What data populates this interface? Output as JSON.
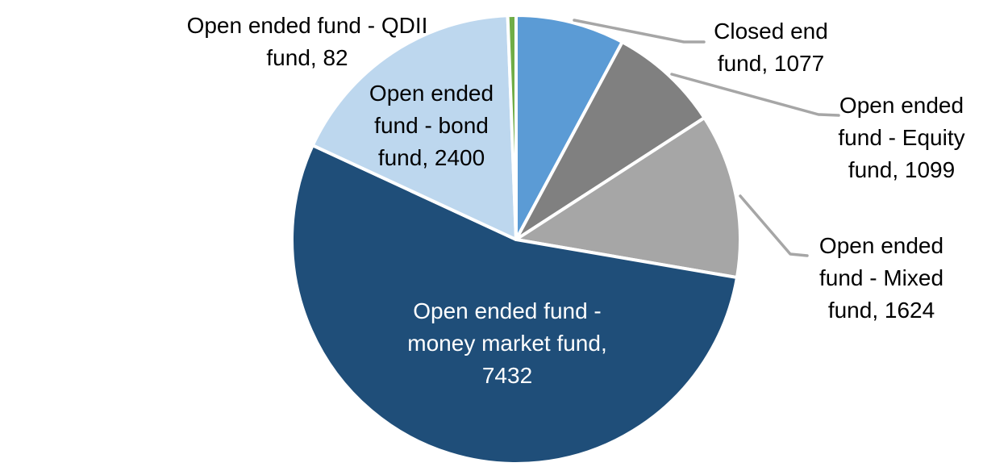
{
  "page": {
    "background_color": "#FFFFFF"
  },
  "chart_data": {
    "type": "pie",
    "title": "",
    "legend": "none",
    "total": 13714,
    "start_angle_deg": 0,
    "direction": "clockwise",
    "slice_border_color": "#FFFFFF",
    "leader_line_color": "#A6A6A6",
    "default_label_color": "#000000",
    "segments": [
      {
        "name": "Closed end fund",
        "value": 1077,
        "color": "#5B9BD5",
        "label_lines": [
          "Closed end",
          "fund, 1077"
        ],
        "label_color": "#000000",
        "label_placement": "outside-top-right",
        "leader_line": true
      },
      {
        "name": "Open ended fund - Equity fund",
        "value": 1099,
        "color": "#808080",
        "label_lines": [
          "Open ended",
          "fund - Equity",
          "fund, 1099"
        ],
        "label_color": "#000000",
        "label_placement": "outside-right",
        "leader_line": true
      },
      {
        "name": "Open ended fund - Mixed fund",
        "value": 1624,
        "color": "#A6A6A6",
        "label_lines": [
          "Open ended",
          "fund - Mixed",
          "fund, 1624"
        ],
        "label_color": "#000000",
        "label_placement": "outside-right",
        "leader_line": true
      },
      {
        "name": "Open ended fund - money market fund",
        "value": 7432,
        "color": "#1F4E79",
        "label_lines": [
          "Open ended fund -",
          "money market fund,",
          "7432"
        ],
        "label_color": "#FFFFFF",
        "label_placement": "inside",
        "leader_line": false
      },
      {
        "name": "Open ended fund - bond fund",
        "value": 2400,
        "color": "#BDD7EE",
        "label_lines": [
          "Open ended",
          "fund - bond",
          "fund, 2400"
        ],
        "label_color": "#000000",
        "label_placement": "inside",
        "leader_line": false
      },
      {
        "name": "Open ended fund - QDII fund",
        "value": 82,
        "color": "#70AD47",
        "label_lines": [
          "Open ended fund - QDII",
          "fund, 82"
        ],
        "label_color": "#000000",
        "label_placement": "outside-top-left",
        "leader_line": false
      }
    ]
  }
}
